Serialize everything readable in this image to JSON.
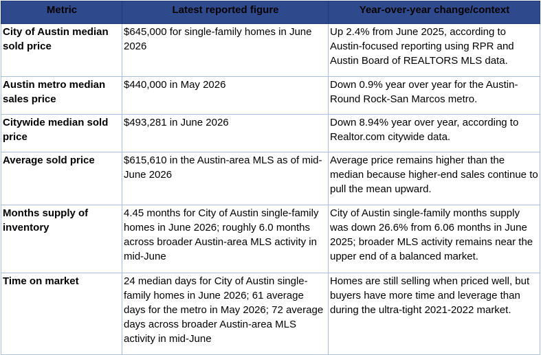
{
  "table": {
    "headers": [
      "Metric",
      "Latest reported figure",
      "Year-over-year change/context"
    ],
    "rows": [
      {
        "metric": "City of Austin median sold price",
        "figure": "$645,000 for single-family homes in June 2026",
        "context": "Up 2.4% from June 2025, according to Austin-focused reporting using RPR and Austin Board of REALTORS MLS data."
      },
      {
        "metric": "Austin metro median sales price",
        "figure": "$440,000 in May 2026",
        "context": "Down 0.9% year over year for the Austin-Round Rock-San Marcos metro."
      },
      {
        "metric": "Citywide median sold price",
        "figure": "$493,281 in June 2026",
        "context": "Down 8.94% year over year, according to Realtor.com citywide data."
      },
      {
        "metric": "Average sold price",
        "figure": "$615,610 in the Austin-area MLS as of mid-June 2026",
        "context": "Average price remains higher than the median because higher-end sales continue to pull the mean upward."
      },
      {
        "metric": "Months supply of inventory",
        "figure": "4.45 months for City of Austin single-family homes in June 2026; roughly 6.0 months across broader Austin-area MLS activity in mid-June",
        "context": "City of Austin single-family months supply was down 26.6% from 6.06 months in June 2025; broader MLS activity remains near the upper end of a balanced market."
      },
      {
        "metric": "Time on market",
        "figure": "24 median days for City of Austin single-family homes in June 2026; 61 average days for the metro in May 2026; 72 average days across broader Austin-area MLS activity in mid-June",
        "context": "Homes are still selling when priced well, but buyers have more time and leverage than during the ultra-tight 2021-2022 market."
      }
    ]
  }
}
